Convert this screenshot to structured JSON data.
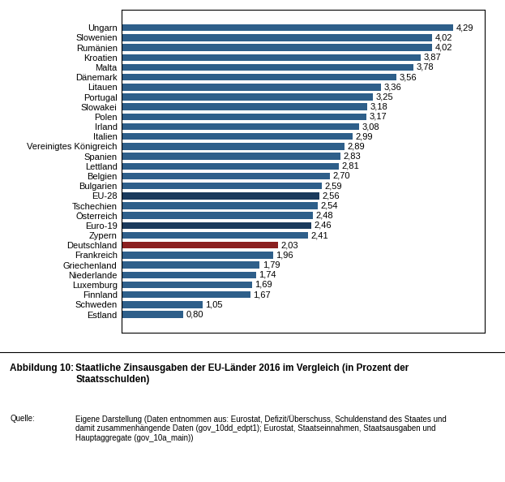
{
  "chart_data": {
    "type": "bar",
    "orientation": "horizontal",
    "title": "Staatliche Zinsausgaben der EU-Länder 2016 im Vergleich (in Prozent der\nStaatsschulden)",
    "annotations": [
      "Abbildung 10:",
      "Quelle:",
      "Eigene Darstellung (Daten entnommen aus: Eurostat, Defizit/Überschuss, Schuldenstand des Staates und\ndamit zusammenhängende Daten (gov_10dd_edpt1); Eurostat, Staatseinnahmen, Staatsausgaben und\nHauptaggregate (gov_10a_main))"
    ],
    "categories": [
      "Ungarn",
      "Slowenien",
      "Rumänien",
      "Kroatien",
      "Malta",
      "Dänemark",
      "Litauen",
      "Portugal",
      "Slowakei",
      "Polen",
      "Irland",
      "Italien",
      "Vereinigtes Königreich",
      "Spanien",
      "Lettland",
      "Belgien",
      "Bulgarien",
      "EU-28",
      "Tschechien",
      "Österreich",
      "Euro-19",
      "Zypern",
      "Deutschland",
      "Frankreich",
      "Griechenland",
      "Niederlande",
      "Luxemburg",
      "Finnland",
      "Schweden",
      "Estland"
    ],
    "values": [
      4.29,
      4.02,
      4.02,
      3.87,
      3.78,
      3.56,
      3.36,
      3.25,
      3.18,
      3.17,
      3.08,
      2.99,
      2.89,
      2.83,
      2.81,
      2.7,
      2.59,
      2.56,
      2.54,
      2.48,
      2.46,
      2.41,
      2.03,
      1.96,
      1.79,
      1.74,
      1.69,
      1.67,
      1.05,
      0.8
    ],
    "value_labels": [
      "4,29",
      "4,02",
      "4,02",
      "3,87",
      "3,78",
      "3,56",
      "3,36",
      "3,25",
      "3,18",
      "3,17",
      "3,08",
      "2,99",
      "2,89",
      "2,83",
      "2,81",
      "2,70",
      "2,59",
      "2,56",
      "2,54",
      "2,48",
      "2,46",
      "2,41",
      "2,03",
      "1,96",
      "1,79",
      "1,74",
      "1,69",
      "1,67",
      "1,05",
      "0,80"
    ],
    "colors": [
      "#2e5f8a",
      "#2e5f8a",
      "#2e5f8a",
      "#2e5f8a",
      "#2e5f8a",
      "#2e5f8a",
      "#2e5f8a",
      "#2e5f8a",
      "#2e5f8a",
      "#2e5f8a",
      "#2e5f8a",
      "#2e5f8a",
      "#2e5f8a",
      "#2e5f8a",
      "#2e5f8a",
      "#2e5f8a",
      "#2e5f8a",
      "#1a3a5c",
      "#2e5f8a",
      "#2e5f8a",
      "#1a3a5c",
      "#2e5f8a",
      "#8b2020",
      "#2e5f8a",
      "#2e5f8a",
      "#2e5f8a",
      "#2e5f8a",
      "#2e5f8a",
      "#2e5f8a",
      "#2e5f8a"
    ],
    "xlim": [
      0,
      4.7
    ],
    "xticks": [],
    "data_labels": true,
    "tick_labels": "y",
    "grid": false
  }
}
